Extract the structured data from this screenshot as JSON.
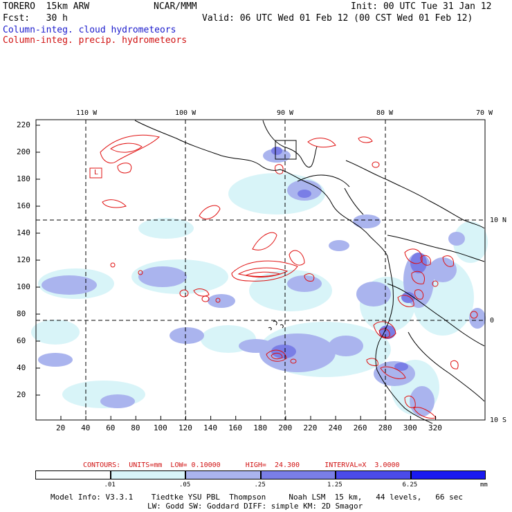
{
  "header": {
    "model": "TORERO  15km ARW",
    "org": "NCAR/MMM",
    "init": "Init: 00 UTC Tue 31 Jan 12",
    "fcst": "Fcst:   30 h",
    "valid": "Valid: 06 UTC Wed 01 Feb 12 (00 CST Wed 01 Feb 12)",
    "field_cloud": "Column-integ. cloud hydrometeors",
    "field_precip": "Column-integ. precip. hydrometeors"
  },
  "map": {
    "lon_labels": [
      "110 W",
      "100 W",
      "90 W",
      "80 W",
      "70 W"
    ],
    "lat_labels": [
      "10 N",
      "0",
      "10 S"
    ],
    "y_ticks": [
      "220",
      "200",
      "180",
      "160",
      "140",
      "120",
      "100",
      "80",
      "60",
      "40",
      "20"
    ],
    "x_ticks": [
      "20",
      "40",
      "60",
      "80",
      "100",
      "120",
      "140",
      "160",
      "180",
      "200",
      "220",
      "240",
      "260",
      "280",
      "300",
      "320"
    ],
    "box_label": "L"
  },
  "contour_info": {
    "label": "CONTOURS:  UNITS=mm  LOW= 0.10000      HIGH=  24.300      INTERVAL=X  3.0000"
  },
  "colorbar": {
    "values": [
      ".01",
      ".05",
      ".25",
      "1.25",
      "6.25"
    ],
    "unit": "mm",
    "colors": [
      "#ffffff",
      "#d8f4f8",
      "#aab4ee",
      "#7a7ee6",
      "#4b4bea",
      "#1a1af0"
    ]
  },
  "footer": {
    "line1": "Model Info: V3.3.1    Tiedtke YSU PBL  Thompson     Noah LSM  15 km,   44 levels,   66 sec",
    "line2": "LW: Godd SW: Goddard DIFF: simple KM: 2D Smagor"
  }
}
